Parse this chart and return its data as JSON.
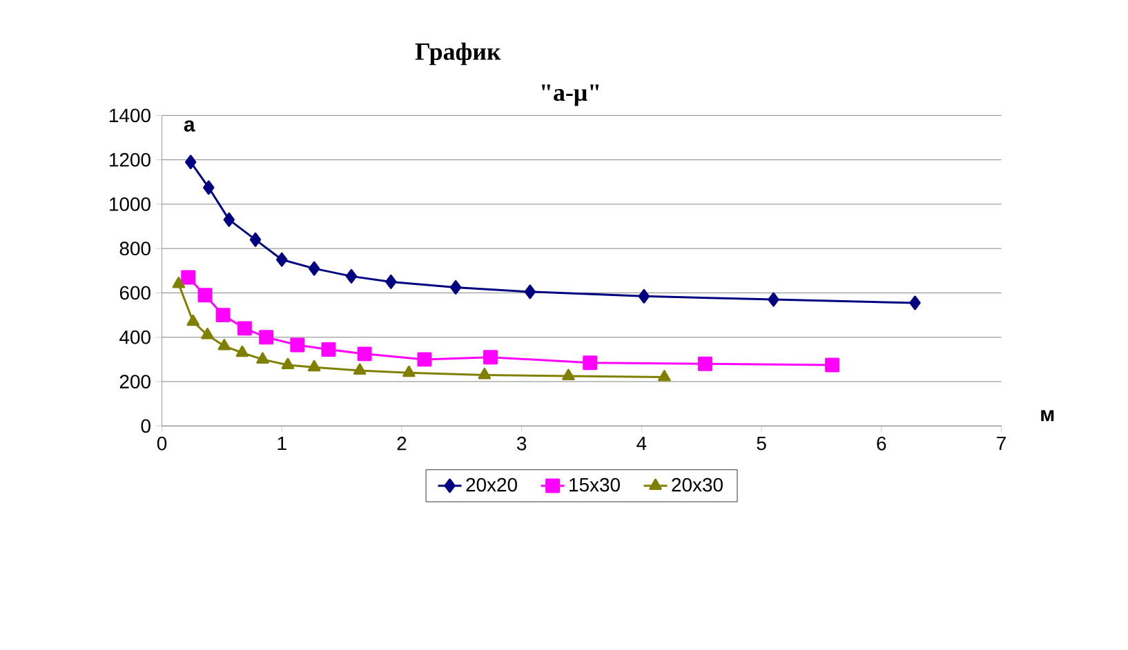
{
  "chart_data": {
    "type": "line",
    "title": "График",
    "subtitle": "\"а-μ\"",
    "xlabel": "м",
    "ylabel": "а",
    "xlim": [
      0,
      7
    ],
    "xticks": [
      0,
      1,
      2,
      3,
      4,
      5,
      6,
      7
    ],
    "ylim": [
      0,
      1400
    ],
    "yticks": [
      0,
      200,
      400,
      600,
      800,
      1000,
      1200,
      1400
    ],
    "grid": "y",
    "legend": "bottom",
    "line_style": "solid",
    "series": [
      {
        "name": "20x20",
        "color": "#000080",
        "marker": "diamond",
        "x": [
          0.24,
          0.39,
          0.56,
          0.78,
          1.0,
          1.27,
          1.58,
          1.91,
          2.45,
          3.07,
          4.02,
          5.1,
          6.28
        ],
        "values": [
          1190,
          1075,
          930,
          840,
          750,
          710,
          675,
          650,
          625,
          605,
          585,
          570,
          555
        ]
      },
      {
        "name": "15x30",
        "color": "#ff00ff",
        "marker": "square",
        "x": [
          0.22,
          0.36,
          0.51,
          0.69,
          0.87,
          1.13,
          1.39,
          1.69,
          2.19,
          2.74,
          3.57,
          4.53,
          5.59
        ],
        "values": [
          670,
          590,
          500,
          440,
          400,
          365,
          345,
          325,
          300,
          310,
          285,
          280,
          275
        ]
      },
      {
        "name": "20x30",
        "color": "#808000",
        "marker": "triangle",
        "x": [
          0.14,
          0.26,
          0.38,
          0.52,
          0.67,
          0.84,
          1.05,
          1.27,
          1.65,
          2.06,
          2.69,
          3.39,
          4.19
        ],
        "values": [
          640,
          470,
          410,
          360,
          330,
          300,
          275,
          265,
          250,
          240,
          230,
          225,
          220
        ]
      }
    ]
  }
}
